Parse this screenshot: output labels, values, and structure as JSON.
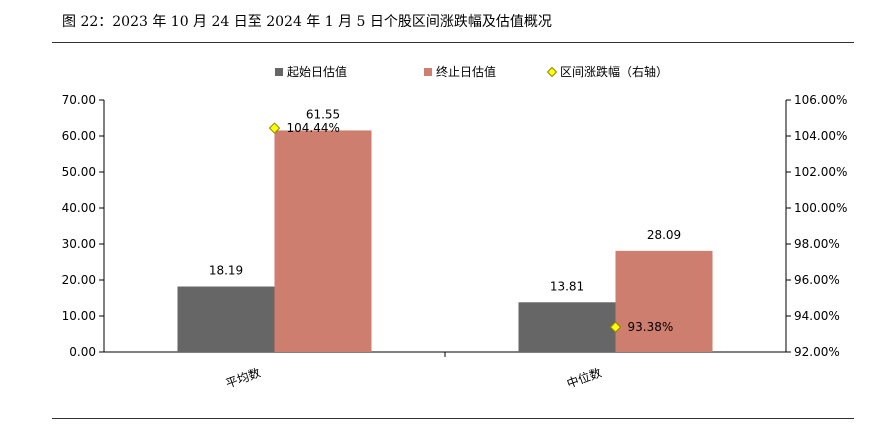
{
  "figure": {
    "title": "图 22：2023 年 10 月 24 日至 2024 年 1 月 5 日个股区间涨跌幅及估值概况"
  },
  "chart_data": {
    "type": "bar",
    "categories": [
      "平均数",
      "中位数"
    ],
    "series": [
      {
        "name": "起始日估值",
        "type": "bar",
        "axis": "left",
        "color": "#666666",
        "values": [
          18.19,
          13.81
        ]
      },
      {
        "name": "终止日估值",
        "type": "bar",
        "axis": "left",
        "color": "#CD7E6E",
        "values": [
          61.55,
          28.09
        ]
      },
      {
        "name": "区间涨跌幅（右轴）",
        "type": "scatter",
        "axis": "right",
        "color": "#FFFF00",
        "values": [
          104.44,
          93.38
        ],
        "labels": [
          "104.44%",
          "93.38%"
        ]
      }
    ],
    "y_left": {
      "range": [
        0,
        70
      ],
      "ticks": [
        "0.00",
        "10.00",
        "20.00",
        "30.00",
        "40.00",
        "50.00",
        "60.00",
        "70.00"
      ]
    },
    "y_right": {
      "range": [
        92,
        106
      ],
      "ticks": [
        "92.00%",
        "94.00%",
        "96.00%",
        "98.00%",
        "100.00%",
        "102.00%",
        "104.00%",
        "106.00%"
      ]
    },
    "bar_labels": [
      [
        "18.19",
        "13.81"
      ],
      [
        "61.55",
        "28.09"
      ]
    ],
    "legend_position": "top",
    "grid": false
  }
}
